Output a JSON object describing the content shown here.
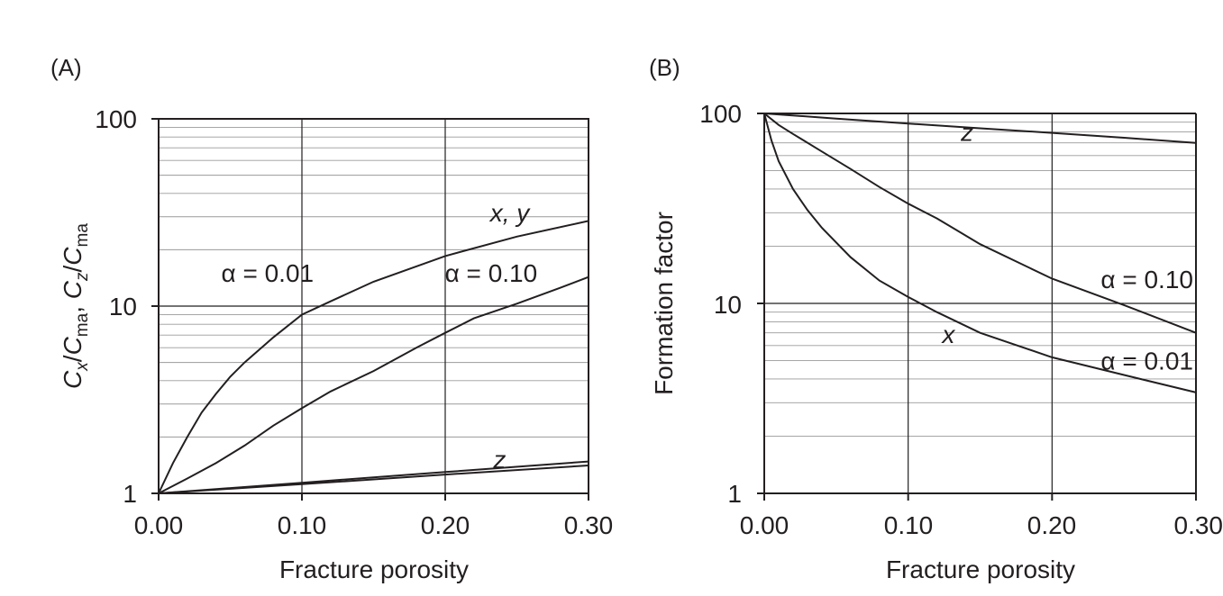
{
  "chart_data": [
    {
      "panel": "(A)",
      "type": "line",
      "xlabel": "Fracture porosity",
      "ylabel_parts": {
        "c1": "C",
        "s1": "x",
        "sep1": "/",
        "c2": "C",
        "s2": "ma",
        "comma": ", ",
        "c3": "C",
        "s3": "z",
        "sep2": "/",
        "c4": "C",
        "s4": "ma"
      },
      "xlim": [
        0,
        0.3
      ],
      "ylim": [
        1,
        100
      ],
      "yscale": "log",
      "grid": true,
      "x_ticks": [
        "0.00",
        "0.10",
        "0.20",
        "0.30"
      ],
      "y_ticks": [
        "1",
        "10",
        "100"
      ],
      "series": [
        {
          "x": [
            0,
            0.01,
            0.02,
            0.03,
            0.04,
            0.05,
            0.06,
            0.08,
            0.1,
            0.12,
            0.15,
            0.2,
            0.25,
            0.3
          ],
          "y": [
            1,
            1.45,
            2.0,
            2.7,
            3.4,
            4.2,
            5.0,
            6.8,
            9.0,
            10.6,
            13.5,
            18.5,
            23.5,
            28.5
          ]
        },
        {
          "x": [
            0,
            0.02,
            0.04,
            0.06,
            0.08,
            0.1,
            0.12,
            0.15,
            0.18,
            0.2,
            0.22,
            0.25,
            0.28,
            0.3
          ],
          "y": [
            1,
            1.2,
            1.45,
            1.8,
            2.3,
            2.85,
            3.5,
            4.5,
            6.0,
            7.2,
            8.6,
            10.3,
            12.5,
            14.3
          ]
        },
        {
          "x": [
            0,
            0.1,
            0.2,
            0.3
          ],
          "y": [
            1,
            1.14,
            1.3,
            1.48
          ]
        },
        {
          "x": [
            0,
            0.1,
            0.2,
            0.3
          ],
          "y": [
            1,
            1.12,
            1.26,
            1.41
          ]
        }
      ],
      "annotations": [
        {
          "text": "x, y",
          "x": 0.245,
          "y": 31.7
        },
        {
          "text": "α = 0.01",
          "x": 0.076,
          "y": 15.1
        },
        {
          "text": "α = 0.10",
          "x": 0.232,
          "y": 15.1
        },
        {
          "text": "z",
          "x": 0.238,
          "y": 1.52
        }
      ]
    },
    {
      "panel": "(B)",
      "type": "line",
      "xlabel": "Fracture porosity",
      "ylabel": "Formation factor",
      "xlim": [
        0,
        0.3
      ],
      "ylim": [
        1,
        100
      ],
      "yscale": "log",
      "grid": true,
      "x_ticks": [
        "0.00",
        "0.10",
        "0.20",
        "0.30"
      ],
      "y_ticks": [
        "1",
        "10",
        "100"
      ],
      "series": [
        {
          "x": [
            0,
            0.05,
            0.1,
            0.15,
            0.2,
            0.25,
            0.3
          ],
          "y": [
            100,
            94,
            88.5,
            83.5,
            79,
            74.5,
            70
          ]
        },
        {
          "x": [
            0,
            0.01,
            0.02,
            0.04,
            0.06,
            0.08,
            0.1,
            0.12,
            0.15,
            0.2,
            0.25,
            0.3
          ],
          "y": [
            100,
            87,
            78,
            63,
            51,
            41,
            33.5,
            28,
            20.5,
            13.5,
            9.8,
            7
          ]
        },
        {
          "x": [
            0,
            0.005,
            0.01,
            0.02,
            0.03,
            0.04,
            0.06,
            0.08,
            0.1,
            0.12,
            0.15,
            0.2,
            0.25,
            0.3
          ],
          "y": [
            100,
            72,
            56,
            40,
            31,
            25,
            17.5,
            13.2,
            10.8,
            9.0,
            7.0,
            5.2,
            4.2,
            3.4
          ]
        }
      ],
      "annotations": [
        {
          "text": "z",
          "x": 0.141,
          "y": 80
        },
        {
          "text": "α = 0.10",
          "x": 0.266,
          "y": 13.4
        },
        {
          "text": "α = 0.01",
          "x": 0.266,
          "y": 5.0
        },
        {
          "text": "x",
          "x": 0.128,
          "y": 6.9
        }
      ]
    }
  ]
}
